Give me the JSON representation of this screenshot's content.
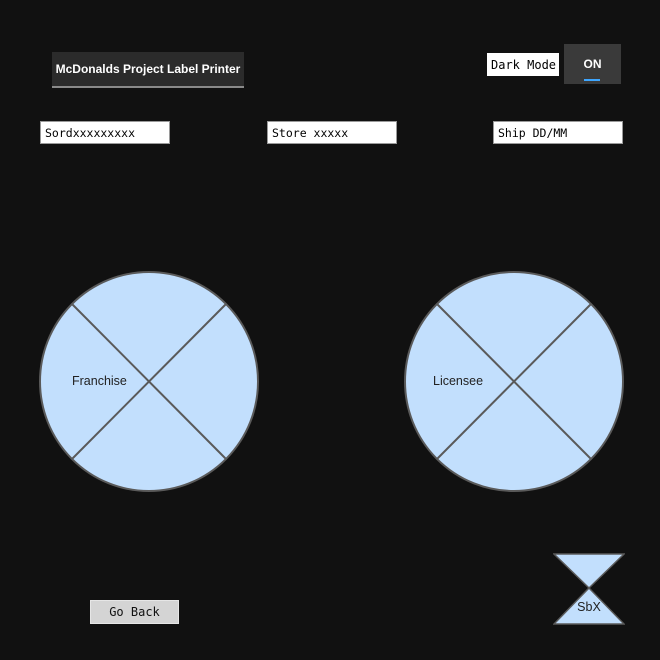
{
  "header": {
    "title_button": "McDonalds Project Label Printer"
  },
  "dark_mode": {
    "label": "Dark Mode",
    "toggle_state": "ON",
    "accent": "#3ea6ff"
  },
  "fields": [
    {
      "placeholder": "Sordxxxxxxxxx"
    },
    {
      "placeholder": "Store xxxxx"
    },
    {
      "placeholder": "Ship DD/MM"
    }
  ],
  "wheels": {
    "left_label": "Franchise",
    "right_label": "Licensee",
    "fill": "#c2dffd"
  },
  "footer": {
    "go_back": "Go Back",
    "sbx": "SbX"
  }
}
